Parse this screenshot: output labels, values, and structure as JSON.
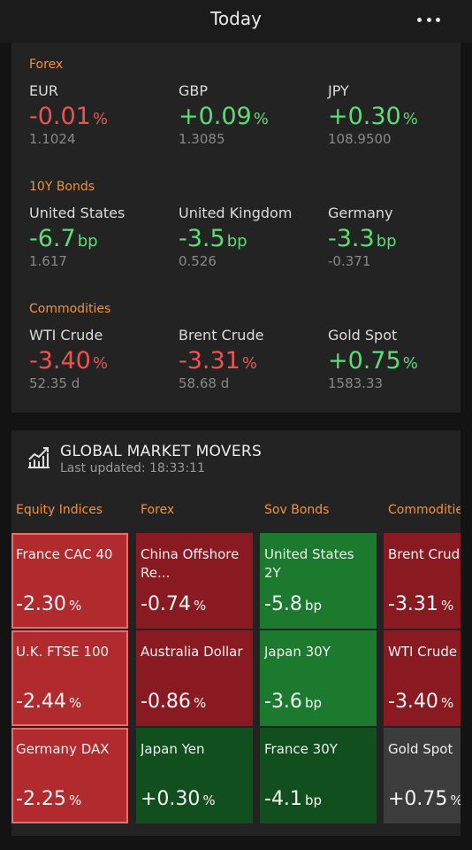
{
  "header": {
    "title": "Today",
    "more_icon": "more-horizontal-icon"
  },
  "sections": [
    {
      "label": "Forex",
      "quotes": [
        {
          "name": "EUR",
          "change": "-0.01",
          "unit": "%",
          "value": "1.1024",
          "dir": "neg"
        },
        {
          "name": "GBP",
          "change": "+0.09",
          "unit": "%",
          "value": "1.3085",
          "dir": "pos"
        },
        {
          "name": "JPY",
          "change": "+0.30",
          "unit": "%",
          "value": "108.9500",
          "dir": "pos"
        }
      ]
    },
    {
      "label": "10Y Bonds",
      "quotes": [
        {
          "name": "United States",
          "change": "-6.7",
          "unit": "bp",
          "value": "1.617",
          "dir": "pos"
        },
        {
          "name": "United Kingdom",
          "change": "-3.5",
          "unit": "bp",
          "value": "0.526",
          "dir": "pos"
        },
        {
          "name": "Germany",
          "change": "-3.3",
          "unit": "bp",
          "value": "-0.371",
          "dir": "pos"
        }
      ]
    },
    {
      "label": "Commodities",
      "quotes": [
        {
          "name": "WTI Crude",
          "change": "-3.40",
          "unit": "%",
          "value": "52.35 d",
          "dir": "neg"
        },
        {
          "name": "Brent Crude",
          "change": "-3.31",
          "unit": "%",
          "value": "58.68 d",
          "dir": "neg"
        },
        {
          "name": "Gold Spot",
          "change": "+0.75",
          "unit": "%",
          "value": "1583.33",
          "dir": "pos"
        }
      ]
    }
  ],
  "movers": {
    "icon": "trend-chart-icon",
    "title": "GLOBAL MARKET MOVERS",
    "updated": "Last updated: 18:33:11",
    "columns": [
      {
        "label": "Equity Indices",
        "tiles": [
          {
            "name": "France CAC 40",
            "change": "-2.30",
            "unit": "%",
            "color": "#b02a2e"
          },
          {
            "name": "U.K. FTSE 100",
            "change": "-2.44",
            "unit": "%",
            "color": "#b02a2e"
          },
          {
            "name": "Germany DAX",
            "change": "-2.25",
            "unit": "%",
            "color": "#b02a2e"
          }
        ]
      },
      {
        "label": "Forex",
        "tiles": [
          {
            "name": "China Offshore Re...",
            "change": "-0.74",
            "unit": "%",
            "color": "#8a1a22"
          },
          {
            "name": "Australia Dollar",
            "change": "-0.86",
            "unit": "%",
            "color": "#8a1a22"
          },
          {
            "name": "Japan Yen",
            "change": "+0.30",
            "unit": "%",
            "color": "#114f1f"
          }
        ]
      },
      {
        "label": "Sov Bonds",
        "tiles": [
          {
            "name": "United States 2Y",
            "change": "-5.8",
            "unit": "bp",
            "color": "#1c7a2e"
          },
          {
            "name": "Japan 30Y",
            "change": "-3.6",
            "unit": "bp",
            "color": "#1c7a2e"
          },
          {
            "name": "France 30Y",
            "change": "-4.1",
            "unit": "bp",
            "color": "#114f1f"
          }
        ]
      },
      {
        "label": "Commoditie",
        "tiles": [
          {
            "name": "Brent Crud",
            "change": "-3.31",
            "unit": "%",
            "color": "#8a1a22"
          },
          {
            "name": "WTI Crude",
            "change": "-3.40",
            "unit": "%",
            "color": "#8a1a22"
          },
          {
            "name": "Gold Spot",
            "change": "+0.75",
            "unit": "%",
            "color": "#3c3c3c"
          }
        ]
      }
    ]
  }
}
